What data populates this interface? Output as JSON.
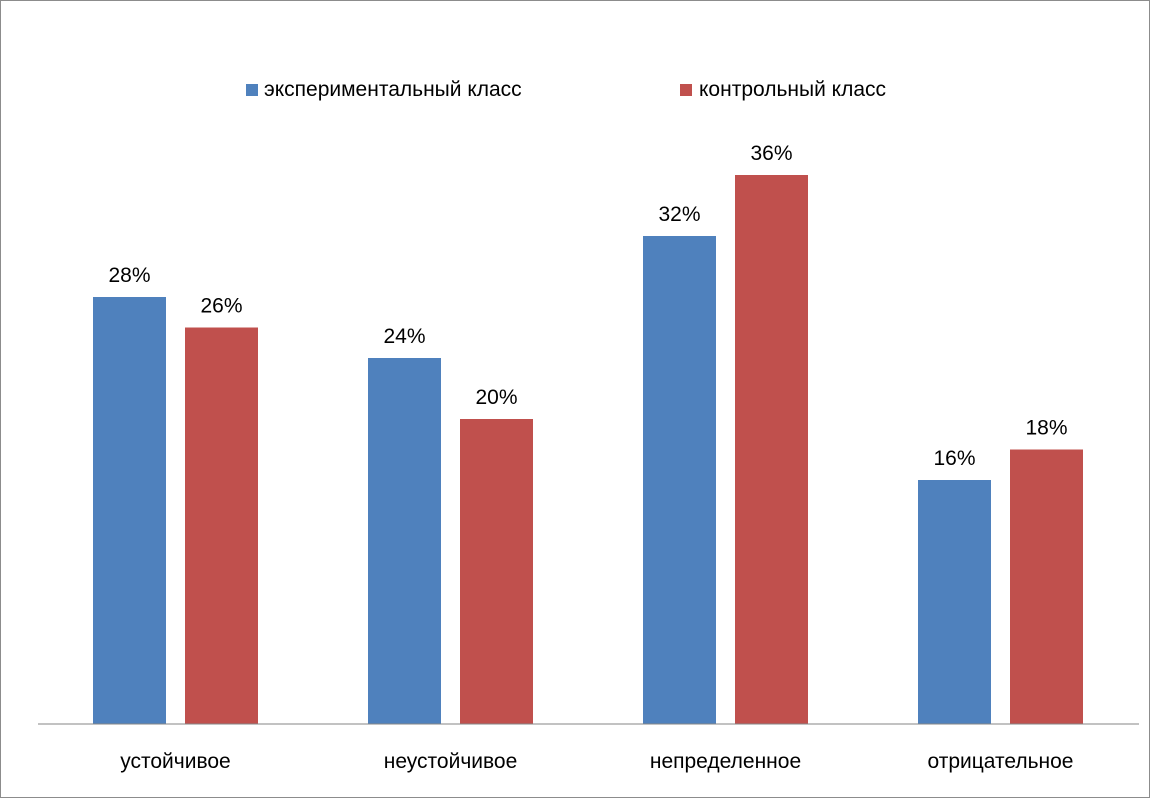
{
  "chart_data": {
    "type": "bar",
    "title": "",
    "xlabel": "",
    "ylabel": "",
    "ylim": [
      0,
      0.4
    ],
    "grid": false,
    "legend_position": "top",
    "categories": [
      "устойчивое",
      "неустойчивое",
      "непределенное",
      "отрицательное"
    ],
    "series": [
      {
        "name": "экспериментальный класс",
        "color": "#4f81bd",
        "values": [
          0.28,
          0.24,
          0.32,
          0.16
        ],
        "labels": [
          "28%",
          "24%",
          "32%",
          "16%"
        ]
      },
      {
        "name": "контрольный класс",
        "color": "#c0504d",
        "values": [
          0.26,
          0.2,
          0.36,
          0.18
        ],
        "labels": [
          "26%",
          "20%",
          "36%",
          "18%"
        ]
      }
    ]
  }
}
